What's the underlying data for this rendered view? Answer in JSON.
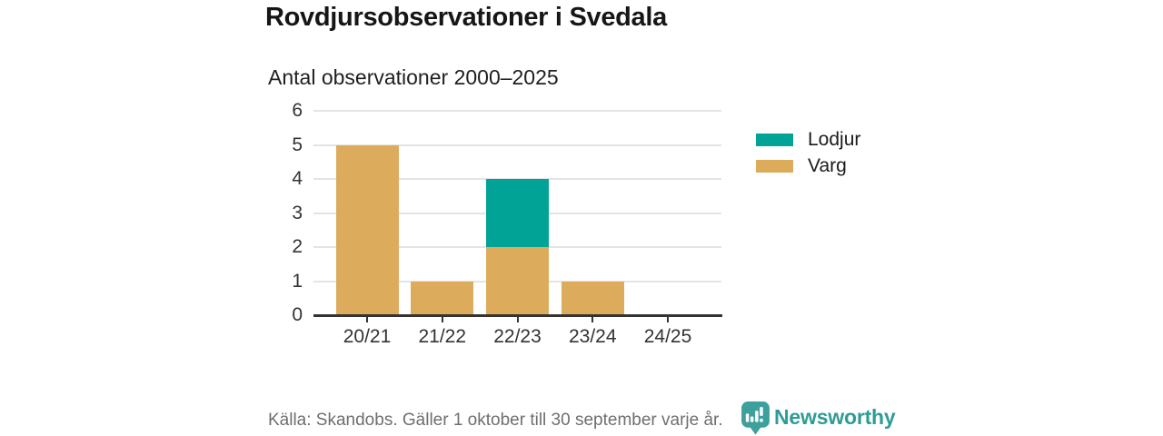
{
  "header": {
    "title": "Rovdjursobservationer i Svedala",
    "subtitle": "Antal observationer 2000–2025"
  },
  "chart_data": {
    "type": "bar",
    "stacked": true,
    "title": "Rovdjursobservationer i Svedala",
    "subtitle": "Antal observationer 2000–2025",
    "categories": [
      "20/21",
      "21/22",
      "22/23",
      "23/24",
      "24/25"
    ],
    "series": [
      {
        "name": "Lodjur",
        "color": "#00A396",
        "values": [
          0,
          0,
          2,
          0,
          0
        ]
      },
      {
        "name": "Varg",
        "color": "#DCAC5C",
        "values": [
          5,
          1,
          2,
          1,
          0
        ]
      }
    ],
    "stack_order_bottom_up": [
      "Varg",
      "Lodjur"
    ],
    "totals": [
      5,
      1,
      4,
      1,
      0
    ],
    "xlabel": "",
    "ylabel": "",
    "ylim": [
      0,
      6
    ],
    "yticks": [
      0,
      1,
      2,
      3,
      4,
      5,
      6
    ],
    "grid": true,
    "legend_position": "right"
  },
  "footer": {
    "source": "Källa: Skandobs. Gäller 1 oktober till 30 september varje år.",
    "brand": "Newsworthy"
  },
  "colors": {
    "lodjur_teal": "#00A396",
    "varg_gold": "#DCAC5C",
    "brand_teal": "#2E9C95",
    "logo_teal": "#3EA09C",
    "gridline": "#E4E4E4",
    "axis": "#333333",
    "text_dark": "#1A1A1A",
    "text_muted": "#6F6F6F"
  }
}
